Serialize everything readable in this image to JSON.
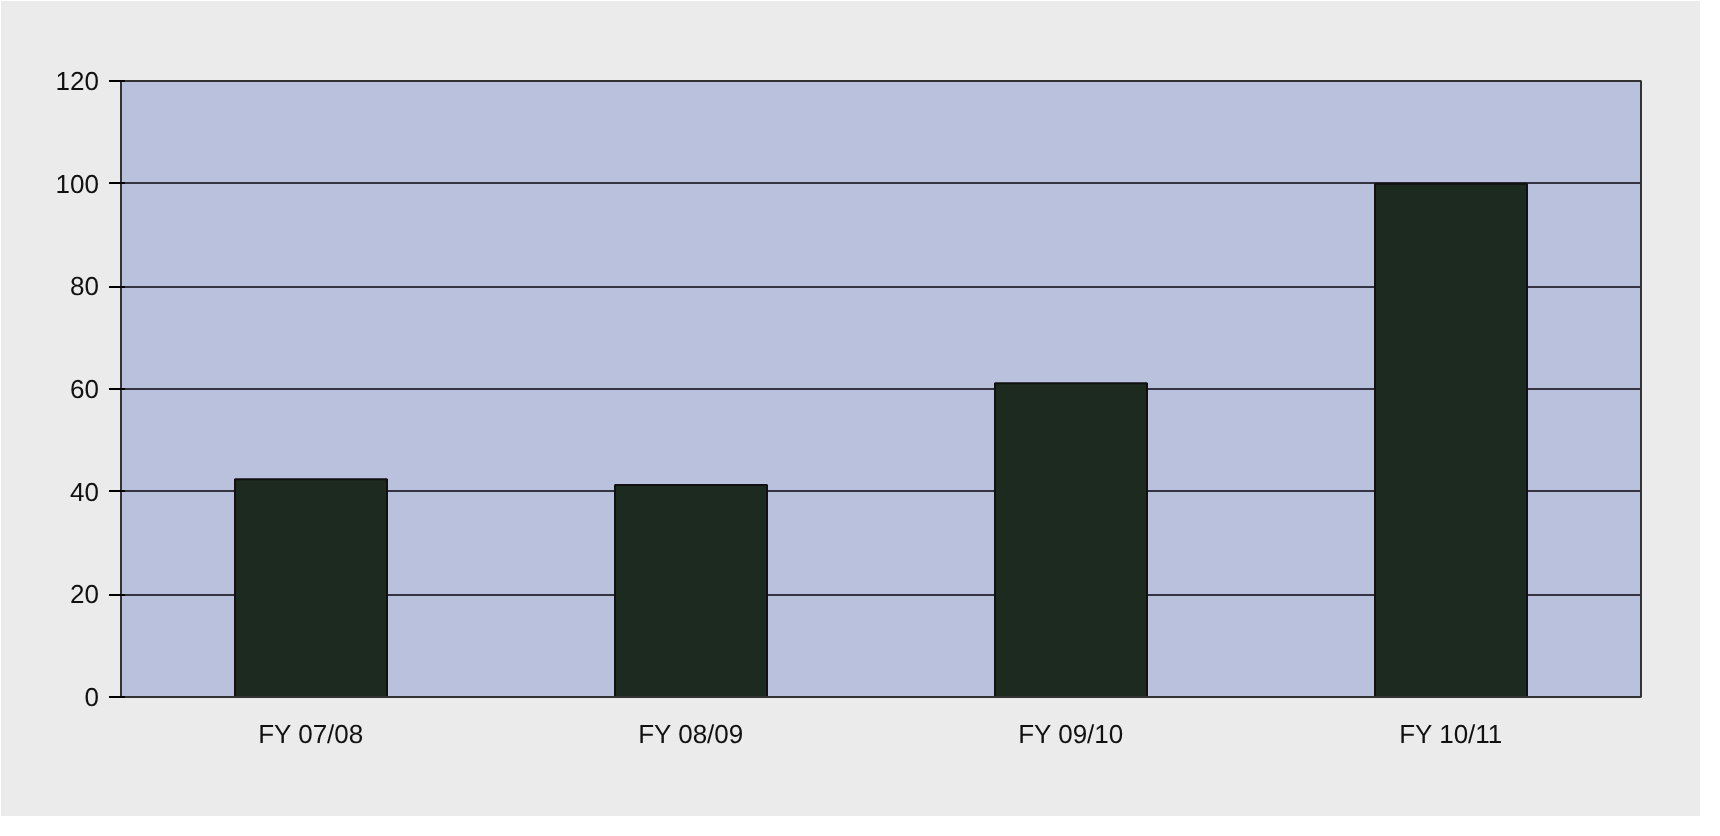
{
  "chart_data": {
    "type": "bar",
    "categories": [
      "FY 07/08",
      "FY 08/09",
      "FY 09/10",
      "FY 10/11"
    ],
    "values": [
      42.4,
      41.3,
      61.1,
      100
    ],
    "color": "#1c2a20",
    "ylim": [
      0,
      120
    ],
    "yticks": [
      0,
      20,
      40,
      60,
      80,
      100,
      120
    ],
    "grid": "y"
  }
}
